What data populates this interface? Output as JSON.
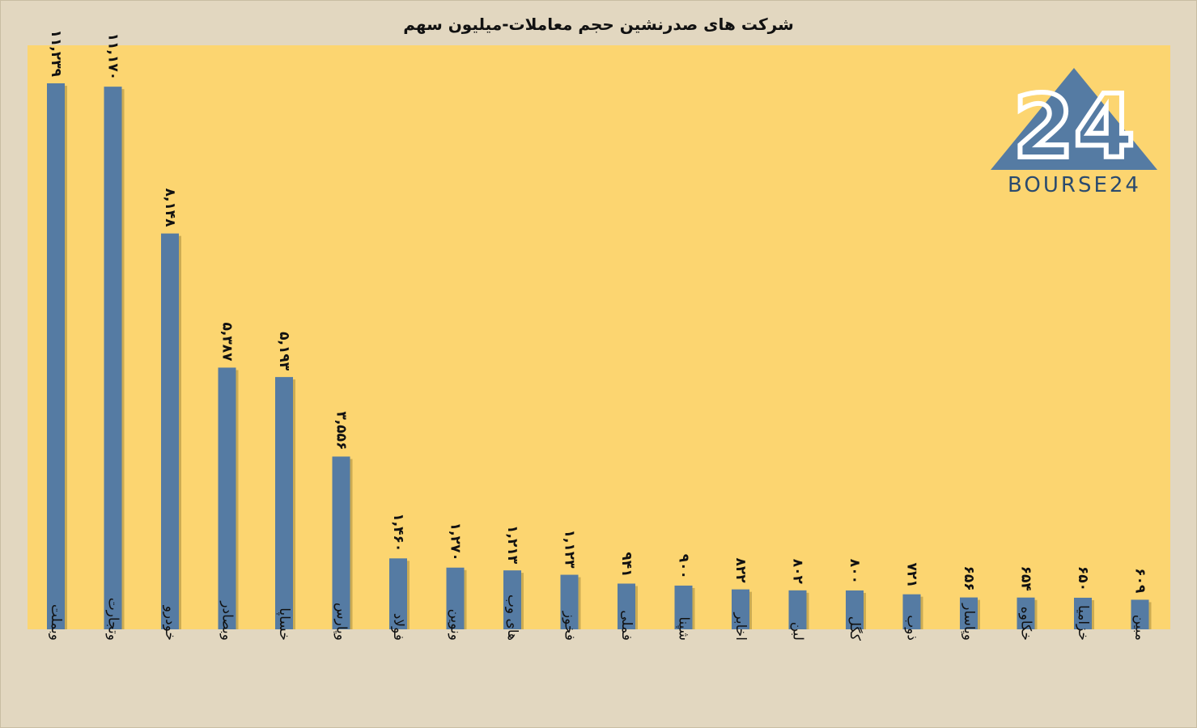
{
  "chart_data": {
    "type": "bar",
    "title": "شرکت های صدرنشین حجم معاملات-میلیون سهم",
    "categories": [
      "وبملت",
      "وتجارت",
      "خودرو",
      "وبصادر",
      "خساپا",
      "وپارس",
      "فولاد",
      "ونوین",
      "های وب",
      "فخوز",
      "فملی",
      "شپنا",
      "اخابر",
      "لبن",
      "کگل",
      "ذوب",
      "وپاسار",
      "خکاوه",
      "خزامیا",
      "مبین"
    ],
    "values": [
      11239,
      11170,
      8148,
      5387,
      5193,
      3556,
      1460,
      1270,
      1213,
      1123,
      941,
      900,
      822,
      802,
      800,
      721,
      656,
      654,
      650,
      609
    ],
    "data_labels": [
      "۱۱,۲۳۹",
      "۱۱,۱۷۰",
      "۸,۱۴۸",
      "۵,۳۸۷",
      "۵,۱۹۳",
      "۳,۵۵۶",
      "۱,۴۶۰",
      "۱,۲۷۰",
      "۱,۲۱۳",
      "۱,۱۲۳",
      "۹۴۱",
      "۹۰۰",
      "۸۲۲",
      "۸۰۲",
      "۸۰۰",
      "۷۲۱",
      "۶۵۶",
      "۶۵۴",
      "۶۵۰",
      "۶۰۹"
    ],
    "ylim": [
      0,
      11239
    ],
    "grid": false,
    "legend": "none",
    "colors": {
      "bar": "#557ba3",
      "shadow": "#a48a3c",
      "plot_bg": "#fcd570",
      "page_bg": "#e2d7c0"
    }
  },
  "logo": {
    "number": "24",
    "text": "BOURSE24",
    "colors": {
      "triangle": "#557ba3",
      "text": "#2a4a6e"
    }
  }
}
